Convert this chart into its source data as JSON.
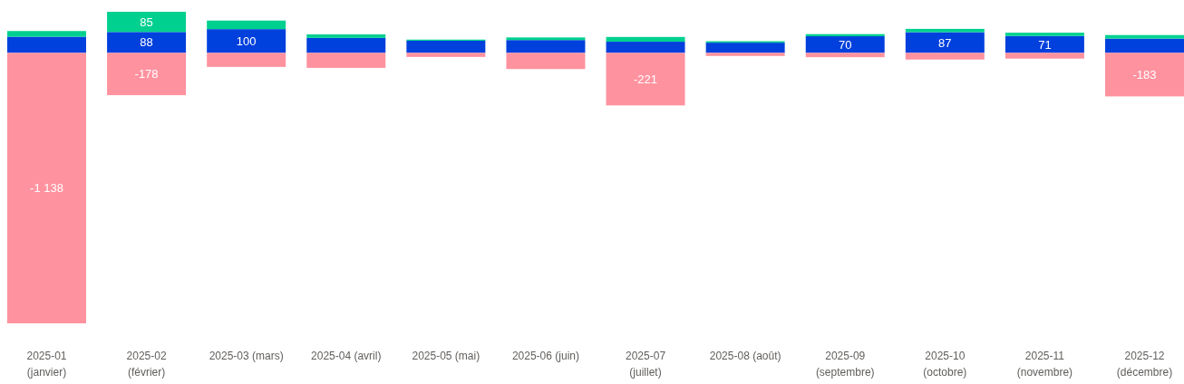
{
  "chart_data": {
    "type": "bar",
    "stacked": true,
    "categories": [
      "2025-01 (janvier)",
      "2025-02 (février)",
      "2025-03 (mars)",
      "2025-04 (avril)",
      "2025-05 (mai)",
      "2025-06 (juin)",
      "2025-07 (juillet)",
      "2025-08 (août)",
      "2025-09 (septembre)",
      "2025-10 (octobre)",
      "2025-11 (novembre)",
      "2025-12 (décembre)"
    ],
    "series": [
      {
        "color": "#0040dd",
        "values": [
          68,
          88,
          100,
          63,
          51,
          54,
          47,
          43,
          70,
          87,
          71,
          60
        ],
        "value_labels": [
          null,
          "88",
          "100",
          null,
          null,
          null,
          null,
          null,
          "70",
          "87",
          "71",
          null
        ]
      },
      {
        "color": "#00d08f",
        "values": [
          24,
          85,
          36,
          15,
          5,
          11,
          20,
          6,
          9,
          14,
          14,
          15
        ],
        "value_labels": [
          null,
          "85",
          null,
          null,
          null,
          null,
          null,
          null,
          null,
          null,
          null,
          null
        ]
      },
      {
        "color": "#ff929f",
        "values": [
          -1138,
          -178,
          -59,
          -63,
          -17,
          -68,
          -221,
          -13,
          -18,
          -28,
          -24,
          -183
        ],
        "value_labels": [
          "-1 138",
          "-178",
          null,
          null,
          null,
          null,
          "-221",
          null,
          null,
          null,
          null,
          "-183"
        ]
      }
    ]
  }
}
